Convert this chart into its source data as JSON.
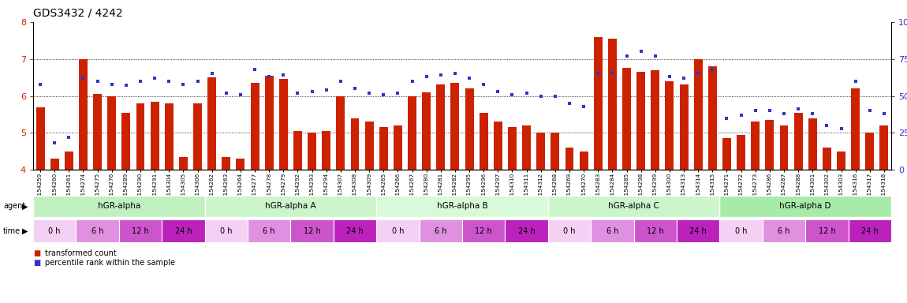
{
  "title": "GDS3432 / 4242",
  "sample_ids": [
    "GSM154259",
    "GSM154260",
    "GSM154261",
    "GSM154274",
    "GSM154275",
    "GSM154276",
    "GSM154289",
    "GSM154290",
    "GSM154291",
    "GSM154304",
    "GSM154305",
    "GSM154306",
    "GSM154262",
    "GSM154263",
    "GSM154264",
    "GSM154277",
    "GSM154278",
    "GSM154279",
    "GSM154292",
    "GSM154293",
    "GSM154294",
    "GSM154307",
    "GSM154308",
    "GSM154309",
    "GSM154265",
    "GSM154266",
    "GSM154267",
    "GSM154280",
    "GSM154281",
    "GSM154282",
    "GSM154295",
    "GSM154296",
    "GSM154297",
    "GSM154310",
    "GSM154311",
    "GSM154312",
    "GSM154268",
    "GSM154269",
    "GSM154270",
    "GSM154283",
    "GSM154284",
    "GSM154285",
    "GSM154298",
    "GSM154299",
    "GSM154300",
    "GSM154313",
    "GSM154314",
    "GSM154315",
    "GSM154271",
    "GSM154272",
    "GSM154273",
    "GSM154286",
    "GSM154287",
    "GSM154288",
    "GSM154301",
    "GSM154302",
    "GSM154303",
    "GSM154316",
    "GSM154317",
    "GSM154318"
  ],
  "bar_values": [
    5.7,
    4.3,
    4.5,
    7.0,
    6.05,
    6.0,
    5.55,
    5.8,
    5.85,
    5.8,
    4.35,
    5.8,
    6.5,
    4.35,
    4.3,
    6.35,
    6.55,
    6.45,
    5.05,
    5.0,
    5.05,
    6.0,
    5.4,
    5.3,
    5.15,
    5.2,
    6.0,
    6.1,
    6.3,
    6.35,
    6.2,
    5.55,
    5.3,
    5.15,
    5.2,
    5.0,
    5.0,
    4.6,
    4.5,
    7.6,
    7.55,
    6.75,
    6.65,
    6.7,
    6.4,
    6.3,
    7.0,
    6.8,
    4.85,
    4.95,
    5.3,
    5.35,
    5.2,
    5.55,
    5.4,
    4.6,
    4.5,
    6.2,
    5.0,
    5.2
  ],
  "dot_values": [
    58,
    18,
    22,
    62,
    60,
    58,
    57,
    60,
    62,
    60,
    58,
    60,
    65,
    52,
    51,
    68,
    63,
    64,
    52,
    53,
    54,
    60,
    55,
    52,
    51,
    52,
    60,
    63,
    64,
    65,
    62,
    58,
    53,
    51,
    52,
    50,
    50,
    45,
    43,
    65,
    66,
    77,
    80,
    77,
    63,
    62,
    65,
    68,
    35,
    37,
    40,
    40,
    38,
    41,
    38,
    30,
    28,
    60,
    40,
    38
  ],
  "ylim_left": [
    4.0,
    8.0
  ],
  "ylim_right": [
    0,
    100
  ],
  "yticks_left": [
    4,
    5,
    6,
    7,
    8
  ],
  "yticks_right": [
    0,
    25,
    50,
    75,
    100
  ],
  "agents": [
    "hGR-alpha",
    "hGR-alpha A",
    "hGR-alpha B",
    "hGR-alpha C",
    "hGR-alpha D"
  ],
  "agent_counts": [
    12,
    12,
    12,
    12,
    12
  ],
  "times": [
    "0 h",
    "6 h",
    "12 h",
    "24 h"
  ],
  "bar_color": "#cc2200",
  "dot_color": "#3333cc",
  "agent_colors": [
    "#c8f5c8",
    "#d0f8d0",
    "#d8fcd8",
    "#c8f5c8",
    "#a8eba8"
  ],
  "time_colors_list": [
    "#f5d0f5",
    "#e090e0",
    "#cc55cc",
    "#bb22bb"
  ],
  "bg_color": "#ffffff",
  "tick_color_left": "#cc2200",
  "tick_color_right": "#3333cc",
  "group_size": 12,
  "num_groups": 5
}
